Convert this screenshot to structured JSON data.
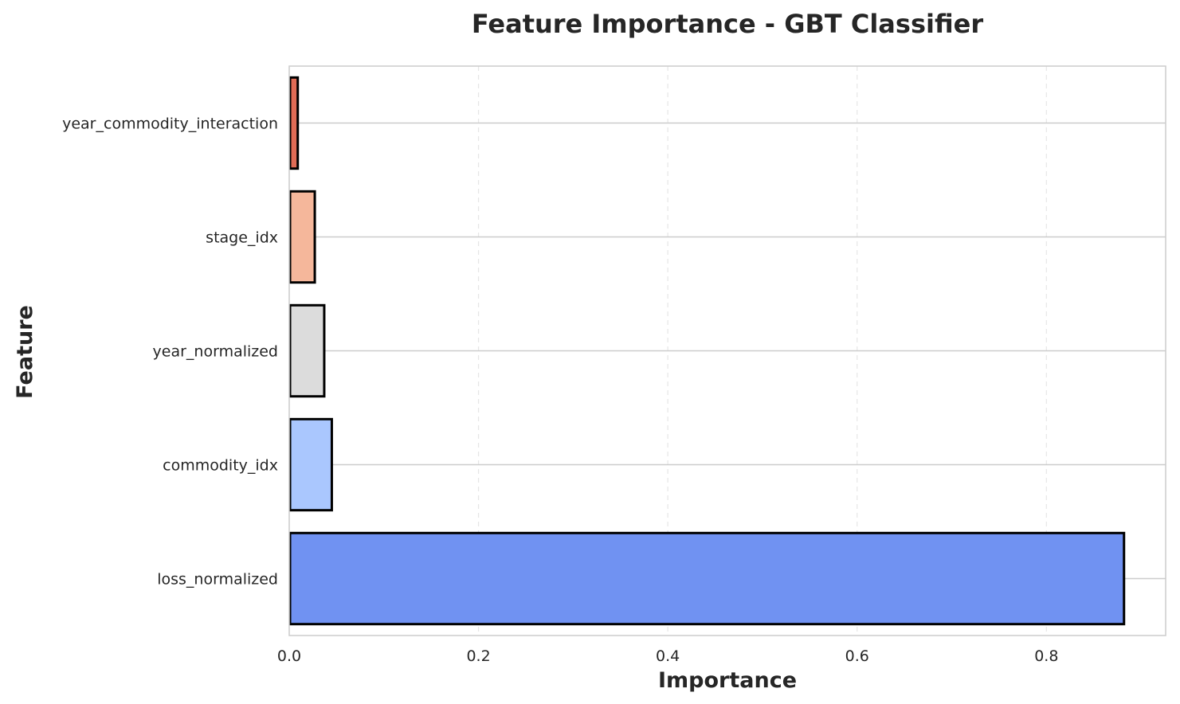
{
  "chart_data": {
    "type": "bar",
    "orientation": "horizontal",
    "title": "Feature Importance - GBT Classifier",
    "xlabel": "Importance",
    "ylabel": "Feature",
    "categories": [
      "loss_normalized",
      "commodity_idx",
      "year_normalized",
      "stage_idx",
      "year_commodity_interaction"
    ],
    "values": [
      0.882,
      0.045,
      0.037,
      0.027,
      0.009
    ],
    "colors": [
      "#7092f2",
      "#aac7fe",
      "#dcdcdc",
      "#f5b79b",
      "#e06c56"
    ],
    "edge_color": "#000000",
    "xlim": [
      0,
      0.926
    ],
    "xticks": [
      0.0,
      0.2,
      0.4,
      0.6,
      0.8
    ],
    "xtick_labels": [
      "0.0",
      "0.2",
      "0.4",
      "0.6",
      "0.8"
    ],
    "grid": true,
    "x_grid_style": "dashed",
    "legend": "none"
  }
}
